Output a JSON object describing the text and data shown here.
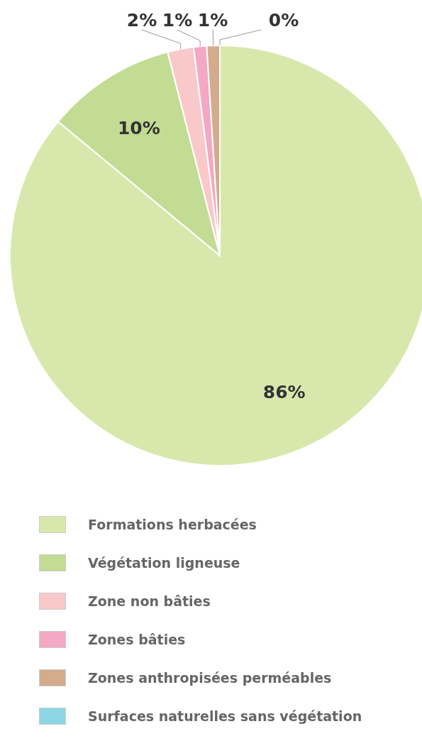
{
  "chart_data": {
    "type": "pie",
    "categories": [
      "Formations herbacées",
      "Végétation ligneuse",
      "Zone non bâties",
      "Zones bâties",
      "Zones anthropisées perméables",
      "Surfaces naturelles sans végétation"
    ],
    "values": [
      86,
      10,
      2,
      1,
      1,
      0
    ],
    "colors": [
      "#d8e8ac",
      "#c2dc93",
      "#f9c9c9",
      "#f4a8c4",
      "#d4ab8c",
      "#8dd6e4"
    ],
    "value_labels": [
      "86%",
      "10%",
      "2%",
      "1%",
      "1%",
      "0%"
    ],
    "legend": "bottom"
  }
}
